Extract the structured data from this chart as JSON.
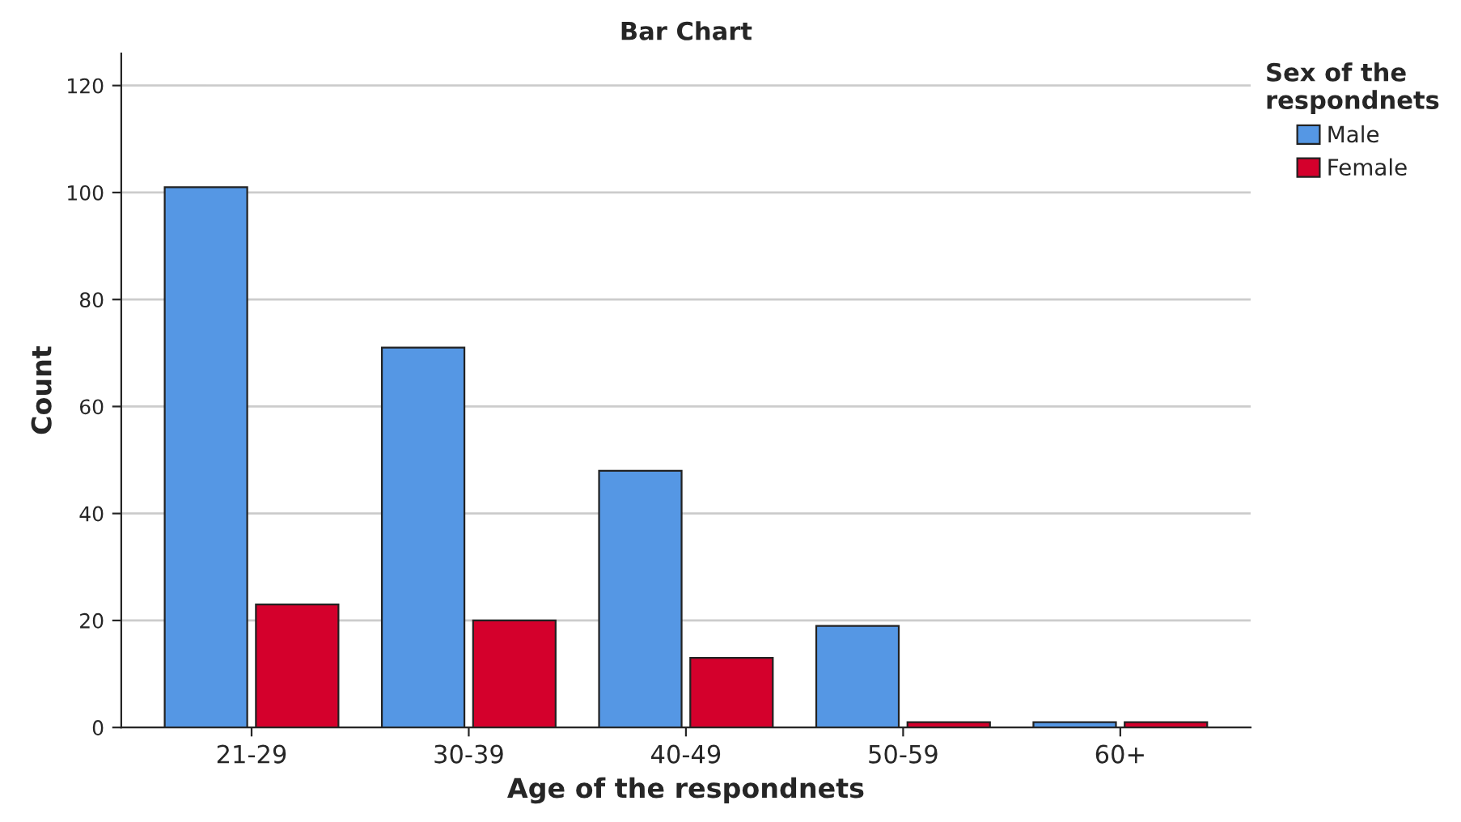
{
  "chart_data": {
    "type": "bar",
    "title": "Bar Chart",
    "xlabel": "Age of the respondnets",
    "ylabel": "Count",
    "legend_title": "Sex of the\nrespondnets",
    "categories": [
      "21-29",
      "30-39",
      "40-49",
      "50-59",
      "60+"
    ],
    "series": [
      {
        "name": "Male",
        "color": "#5597e4",
        "values": [
          101,
          71,
          48,
          19,
          1
        ]
      },
      {
        "name": "Female",
        "color": "#d4002c",
        "values": [
          23,
          20,
          13,
          1,
          1
        ]
      }
    ],
    "ylim": [
      0,
      126
    ],
    "yticks": [
      0,
      20,
      40,
      60,
      80,
      100,
      120
    ],
    "grid": "y",
    "legend": "top right"
  }
}
